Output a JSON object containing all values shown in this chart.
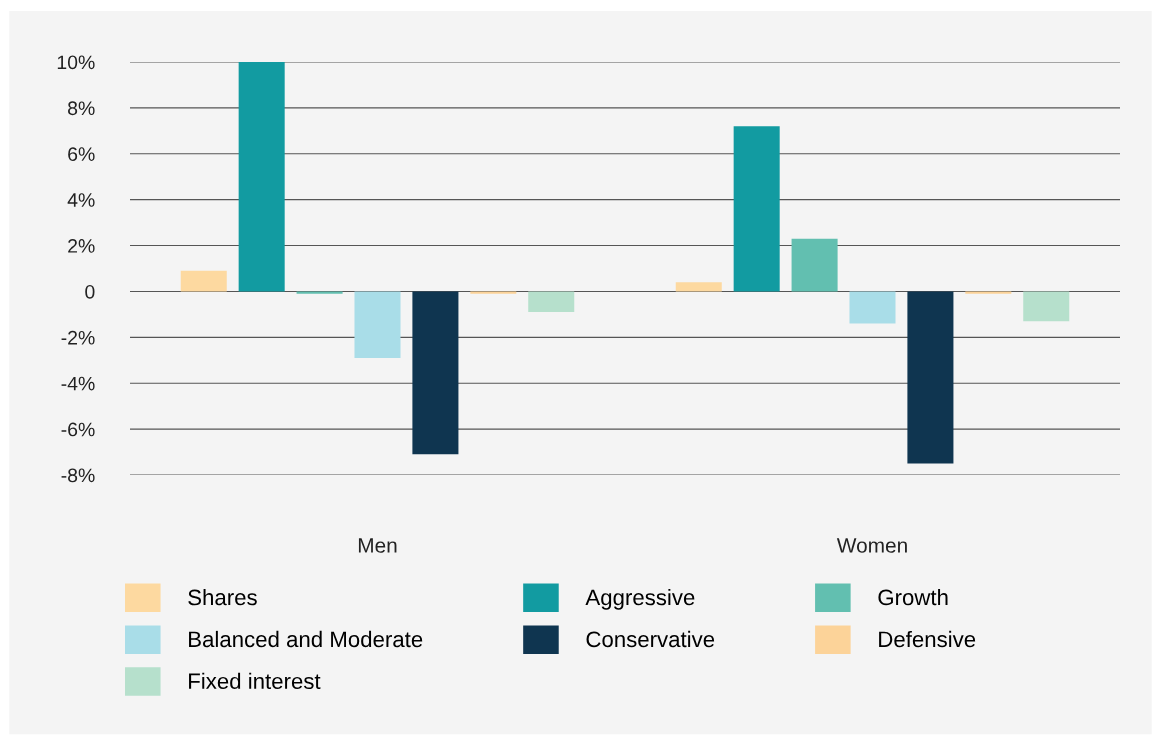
{
  "chart_data": {
    "type": "bar",
    "categories": [
      "Men",
      "Women"
    ],
    "series": [
      {
        "name": "Shares",
        "color": "#fdd9a0",
        "values": [
          0.9,
          0.4
        ]
      },
      {
        "name": "Aggressive",
        "color": "#129ba1",
        "values": [
          10,
          7.2
        ]
      },
      {
        "name": "Growth",
        "color": "#62bfb0",
        "values": [
          -0.1,
          2.3
        ]
      },
      {
        "name": "Balanced and Moderate",
        "color": "#a9dde8",
        "values": [
          -2.9,
          -1.4
        ]
      },
      {
        "name": "Conservative",
        "color": "#0f3550",
        "values": [
          -7.1,
          -7.5
        ]
      },
      {
        "name": "Defensive",
        "color": "#fcd399",
        "values": [
          -0.1,
          -0.1
        ]
      },
      {
        "name": "Fixed interest",
        "color": "#b6e0cc",
        "values": [
          -0.9,
          -1.3
        ]
      }
    ],
    "ylim": [
      -8,
      10
    ],
    "yticks": [
      {
        "value": -8,
        "label": "-8%"
      },
      {
        "value": -6,
        "label": "-6%"
      },
      {
        "value": -4,
        "label": "-4%"
      },
      {
        "value": -2,
        "label": "-2%"
      },
      0,
      {
        "value": 2,
        "label": "2%"
      },
      {
        "value": 4,
        "label": "4%"
      },
      {
        "value": 6,
        "label": "6%"
      },
      {
        "value": 8,
        "label": "8%"
      },
      {
        "value": 10,
        "label": "10%"
      }
    ],
    "grid": "y",
    "legend": "bottom"
  }
}
